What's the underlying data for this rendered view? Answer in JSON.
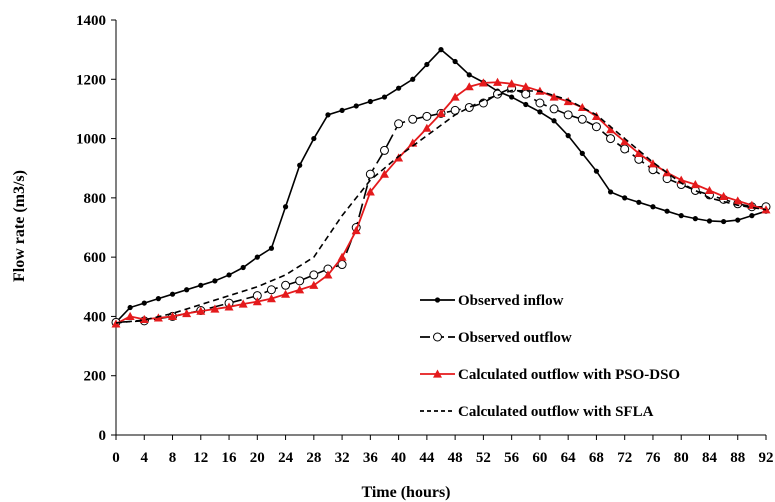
{
  "chart_data": {
    "type": "line",
    "xlabel": "Time (hours)",
    "ylabel": "Flow rate (m3/s)",
    "xlim": [
      0,
      92
    ],
    "ylim": [
      0,
      1400
    ],
    "x_ticks": [
      0,
      4,
      8,
      12,
      16,
      20,
      24,
      28,
      32,
      36,
      40,
      44,
      48,
      52,
      56,
      60,
      64,
      68,
      72,
      76,
      80,
      84,
      88,
      92
    ],
    "y_ticks": [
      0,
      200,
      400,
      600,
      800,
      1000,
      1200,
      1400
    ],
    "grid": false,
    "legend_position": "bottom-right",
    "series": [
      {
        "name": "Observed inflow",
        "color": "#000000",
        "line_style": "solid",
        "marker": "dot",
        "points": [
          [
            0,
            380
          ],
          [
            2,
            430
          ],
          [
            4,
            445
          ],
          [
            6,
            460
          ],
          [
            8,
            475
          ],
          [
            10,
            490
          ],
          [
            12,
            505
          ],
          [
            14,
            520
          ],
          [
            16,
            540
          ],
          [
            18,
            565
          ],
          [
            20,
            600
          ],
          [
            22,
            630
          ],
          [
            24,
            770
          ],
          [
            26,
            910
          ],
          [
            28,
            1000
          ],
          [
            30,
            1080
          ],
          [
            32,
            1095
          ],
          [
            34,
            1110
          ],
          [
            36,
            1125
          ],
          [
            38,
            1140
          ],
          [
            40,
            1170
          ],
          [
            42,
            1200
          ],
          [
            44,
            1250
          ],
          [
            46,
            1300
          ],
          [
            48,
            1260
          ],
          [
            50,
            1215
          ],
          [
            52,
            1190
          ],
          [
            54,
            1160
          ],
          [
            56,
            1140
          ],
          [
            58,
            1115
          ],
          [
            60,
            1090
          ],
          [
            62,
            1060
          ],
          [
            64,
            1010
          ],
          [
            66,
            950
          ],
          [
            68,
            890
          ],
          [
            70,
            820
          ],
          [
            72,
            800
          ],
          [
            74,
            785
          ],
          [
            76,
            770
          ],
          [
            78,
            755
          ],
          [
            80,
            740
          ],
          [
            82,
            730
          ],
          [
            84,
            722
          ],
          [
            86,
            720
          ],
          [
            88,
            725
          ],
          [
            90,
            740
          ],
          [
            92,
            755
          ]
        ]
      },
      {
        "name": "Observed outflow",
        "color": "#000000",
        "line_style": "longdash",
        "marker": "open-circle",
        "points": [
          [
            0,
            380
          ],
          [
            4,
            385
          ],
          [
            8,
            400
          ],
          [
            12,
            420
          ],
          [
            16,
            445
          ],
          [
            20,
            470
          ],
          [
            22,
            490
          ],
          [
            24,
            505
          ],
          [
            26,
            520
          ],
          [
            28,
            540
          ],
          [
            30,
            560
          ],
          [
            32,
            575
          ],
          [
            34,
            700
          ],
          [
            36,
            880
          ],
          [
            38,
            960
          ],
          [
            40,
            1050
          ],
          [
            42,
            1065
          ],
          [
            44,
            1075
          ],
          [
            46,
            1085
          ],
          [
            48,
            1095
          ],
          [
            50,
            1105
          ],
          [
            52,
            1120
          ],
          [
            54,
            1150
          ],
          [
            56,
            1170
          ],
          [
            58,
            1150
          ],
          [
            60,
            1120
          ],
          [
            62,
            1100
          ],
          [
            64,
            1080
          ],
          [
            66,
            1065
          ],
          [
            68,
            1040
          ],
          [
            70,
            1000
          ],
          [
            72,
            965
          ],
          [
            74,
            930
          ],
          [
            76,
            895
          ],
          [
            78,
            865
          ],
          [
            80,
            845
          ],
          [
            82,
            825
          ],
          [
            84,
            810
          ],
          [
            86,
            795
          ],
          [
            88,
            780
          ],
          [
            90,
            770
          ],
          [
            92,
            770
          ]
        ]
      },
      {
        "name": "Calculated outflow with PSO-DSO",
        "color": "#e41a1c",
        "line_style": "solid",
        "marker": "filled-triangle",
        "points": [
          [
            0,
            375
          ],
          [
            2,
            400
          ],
          [
            4,
            390
          ],
          [
            6,
            395
          ],
          [
            8,
            400
          ],
          [
            10,
            410
          ],
          [
            12,
            418
          ],
          [
            14,
            425
          ],
          [
            16,
            432
          ],
          [
            18,
            442
          ],
          [
            20,
            450
          ],
          [
            22,
            460
          ],
          [
            24,
            475
          ],
          [
            26,
            490
          ],
          [
            28,
            505
          ],
          [
            30,
            540
          ],
          [
            32,
            600
          ],
          [
            34,
            690
          ],
          [
            36,
            820
          ],
          [
            38,
            880
          ],
          [
            40,
            935
          ],
          [
            42,
            985
          ],
          [
            44,
            1035
          ],
          [
            46,
            1085
          ],
          [
            48,
            1140
          ],
          [
            50,
            1175
          ],
          [
            52,
            1188
          ],
          [
            54,
            1190
          ],
          [
            56,
            1185
          ],
          [
            58,
            1175
          ],
          [
            60,
            1160
          ],
          [
            62,
            1140
          ],
          [
            64,
            1125
          ],
          [
            66,
            1105
          ],
          [
            68,
            1075
          ],
          [
            70,
            1030
          ],
          [
            72,
            990
          ],
          [
            74,
            950
          ],
          [
            76,
            915
          ],
          [
            78,
            885
          ],
          [
            80,
            860
          ],
          [
            82,
            845
          ],
          [
            84,
            825
          ],
          [
            86,
            805
          ],
          [
            88,
            790
          ],
          [
            90,
            775
          ],
          [
            92,
            760
          ]
        ]
      },
      {
        "name": "Calculated outflow with SFLA",
        "color": "#000000",
        "line_style": "dashed",
        "marker": "none",
        "points": [
          [
            0,
            378
          ],
          [
            4,
            388
          ],
          [
            8,
            410
          ],
          [
            12,
            440
          ],
          [
            16,
            470
          ],
          [
            20,
            500
          ],
          [
            24,
            540
          ],
          [
            28,
            600
          ],
          [
            32,
            740
          ],
          [
            36,
            860
          ],
          [
            40,
            940
          ],
          [
            44,
            1010
          ],
          [
            48,
            1080
          ],
          [
            52,
            1130
          ],
          [
            56,
            1162
          ],
          [
            60,
            1160
          ],
          [
            64,
            1130
          ],
          [
            68,
            1080
          ],
          [
            72,
            1000
          ],
          [
            76,
            920
          ],
          [
            80,
            850
          ],
          [
            84,
            800
          ],
          [
            88,
            775
          ],
          [
            92,
            760
          ]
        ]
      }
    ]
  }
}
